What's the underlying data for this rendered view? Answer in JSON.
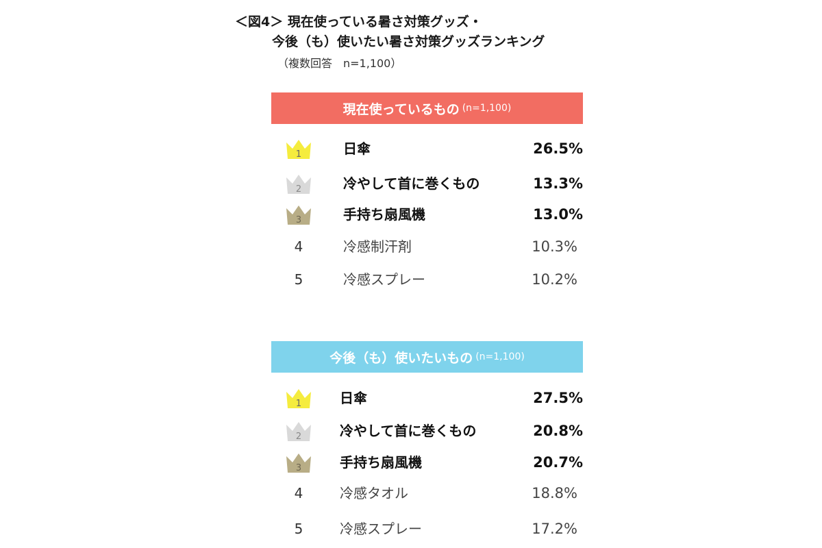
{
  "header": {
    "title_line1": "＜図4＞ 現在使っている暑さ対策グッズ・",
    "title_line2": "今後（も）使いたい暑さ対策グッズランキング",
    "note": "（複数回答　n=1,100）"
  },
  "colors": {
    "current_band": "#f26d62",
    "future_band": "#7fd3ec",
    "gold": "#f5ec3e",
    "silver": "#d9d9d9",
    "bronze": "#b8ad86"
  },
  "chart_data": [
    {
      "type": "table",
      "title": "現在使っているもの",
      "n_label": "(n=1,100)",
      "columns": [
        "rank",
        "item",
        "percent"
      ],
      "rows": [
        {
          "rank": "1",
          "item": "日傘",
          "value": "26.5%"
        },
        {
          "rank": "2",
          "item": "冷やして首に巻くもの",
          "value": "13.3%"
        },
        {
          "rank": "3",
          "item": "手持ち扇風機",
          "value": "13.0%"
        },
        {
          "rank": "4",
          "item": "冷感制汗剤",
          "value": "10.3%"
        },
        {
          "rank": "5",
          "item": "冷感スプレー",
          "value": "10.2%"
        }
      ]
    },
    {
      "type": "table",
      "title": "今後（も）使いたいもの",
      "n_label": "(n=1,100)",
      "columns": [
        "rank",
        "item",
        "percent"
      ],
      "rows": [
        {
          "rank": "1",
          "item": "日傘",
          "value": "27.5%"
        },
        {
          "rank": "2",
          "item": "冷やして首に巻くもの",
          "value": "20.8%"
        },
        {
          "rank": "3",
          "item": "手持ち扇風機",
          "value": "20.7%"
        },
        {
          "rank": "4",
          "item": "冷感タオル",
          "value": "18.8%"
        },
        {
          "rank": "5",
          "item": "冷感スプレー",
          "value": "17.2%"
        }
      ]
    }
  ]
}
